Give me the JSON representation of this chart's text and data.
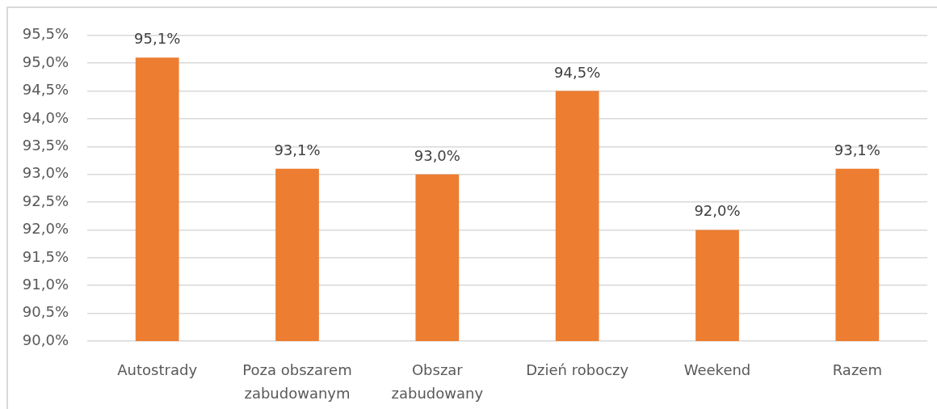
{
  "chart_data": {
    "type": "bar",
    "categories": [
      "Autostrady",
      "Poza obszarem zabudowanym",
      "Obszar zabudowany",
      "Dzień roboczy",
      "Weekend",
      "Razem"
    ],
    "values": [
      95.1,
      93.1,
      93.0,
      94.5,
      92.0,
      93.1
    ],
    "value_labels": [
      "95,1%",
      "93,1%",
      "93,0%",
      "94,5%",
      "92,0%",
      "93,1%"
    ],
    "color": "#ed7d31",
    "ylim": [
      90,
      95.5
    ],
    "yticks": [
      {
        "value": 90,
        "label": "90,0%"
      },
      {
        "value": 90.5,
        "label": "90,5%"
      },
      {
        "value": 91,
        "label": "91,0%"
      },
      {
        "value": 91.5,
        "label": "91,5%"
      },
      {
        "value": 92,
        "label": "92,0%"
      },
      {
        "value": 92.5,
        "label": "92,5%"
      },
      {
        "value": 93,
        "label": "93,0%"
      },
      {
        "value": 93.5,
        "label": "93,5%"
      },
      {
        "value": 94,
        "label": "94,0%"
      },
      {
        "value": 94.5,
        "label": "94,5%"
      },
      {
        "value": 95,
        "label": "95,0%"
      },
      {
        "value": 95.5,
        "label": "95,5%"
      }
    ],
    "grid": "y"
  }
}
